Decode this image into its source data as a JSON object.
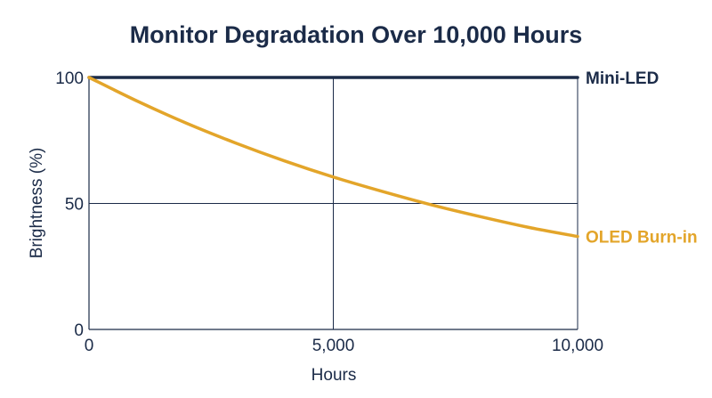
{
  "colors": {
    "text": "#1b2b48",
    "grid": "#1b2b48",
    "mini_led": "#1b2b48",
    "oled": "#e3a52a",
    "background": "#ffffff"
  },
  "chart_data": {
    "type": "line",
    "title": "Monitor Degradation Over 10,000 Hours",
    "xlabel": "Hours",
    "ylabel": "Brightness (%)",
    "xlim": [
      0,
      10000
    ],
    "ylim": [
      0,
      100
    ],
    "x_ticks": [
      {
        "value": 0,
        "label": "0"
      },
      {
        "value": 5000,
        "label": "5,000"
      },
      {
        "value": 10000,
        "label": "10,000"
      }
    ],
    "y_ticks": [
      {
        "value": 0,
        "label": "0"
      },
      {
        "value": 50,
        "label": "50"
      },
      {
        "value": 100,
        "label": "100"
      }
    ],
    "grid": true,
    "legend": "direct labels at right end of each line",
    "series": [
      {
        "name": "Mini-LED",
        "color": "#1b2b48",
        "x": [
          0,
          10000
        ],
        "y": [
          100,
          100
        ]
      },
      {
        "name": "OLED Burn-in",
        "color": "#e3a52a",
        "x": [
          0,
          1000,
          2000,
          3000,
          4000,
          5000,
          6000,
          7000,
          8000,
          9000,
          10000
        ],
        "y": [
          100,
          90.5,
          81.8,
          74.0,
          66.9,
          60.5,
          54.8,
          49.5,
          44.8,
          40.5,
          36.9
        ]
      }
    ]
  }
}
